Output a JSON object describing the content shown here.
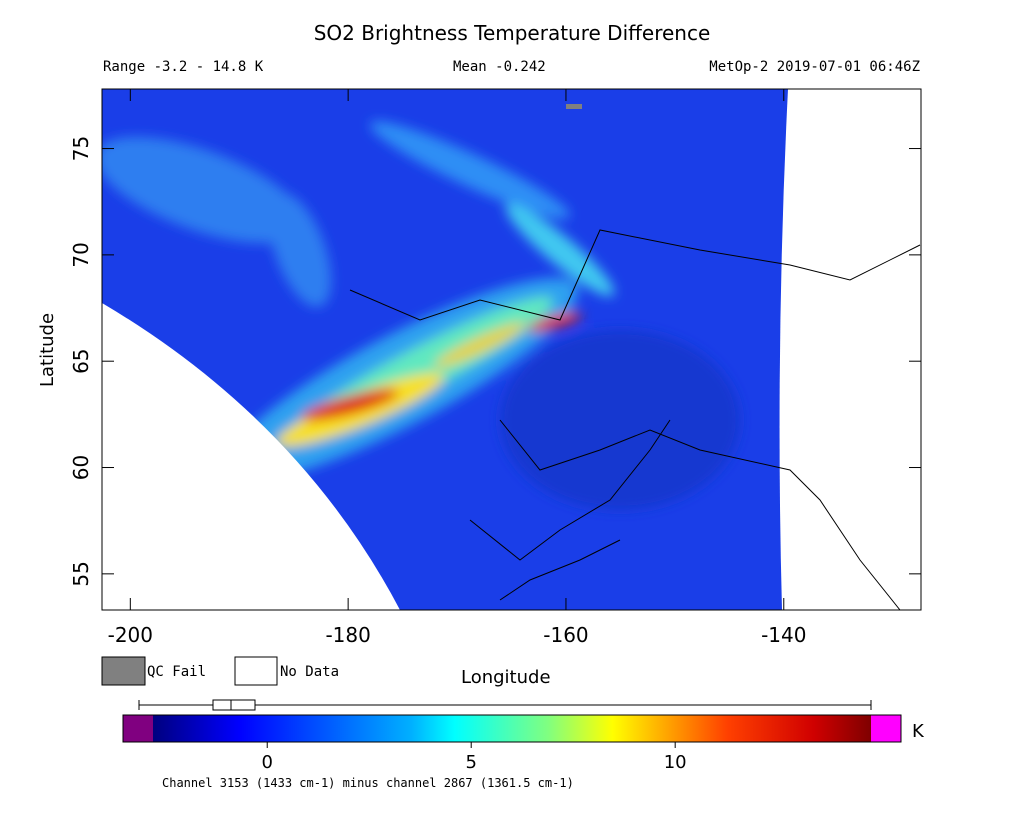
{
  "map": {
    "title": "SO2 Brightness Temperature Difference",
    "range_label": "Range -3.2 - 14.8 K",
    "mean_label": "Mean -0.242",
    "satellite_label": "MetOp-2 2019-07-01 06:46Z",
    "xlabel": "Longitude",
    "ylabel": "Latitude",
    "xlim": [
      -202.6,
      -127.4
    ],
    "ylim": [
      53.3,
      77.8
    ],
    "xticks": [
      -200,
      -180,
      -160,
      -140
    ],
    "yticks": [
      55,
      60,
      65,
      70,
      75
    ],
    "legend": [
      "QC Fail",
      "No Data"
    ],
    "colorbar": {
      "lim": [
        -2.8,
        14.8
      ],
      "ticks": [
        0,
        5,
        10
      ],
      "unit": "K"
    },
    "footnote": "Channel 3153 (1433 cm-1) minus channel 2867 (1361.5 cm-1)"
  }
}
